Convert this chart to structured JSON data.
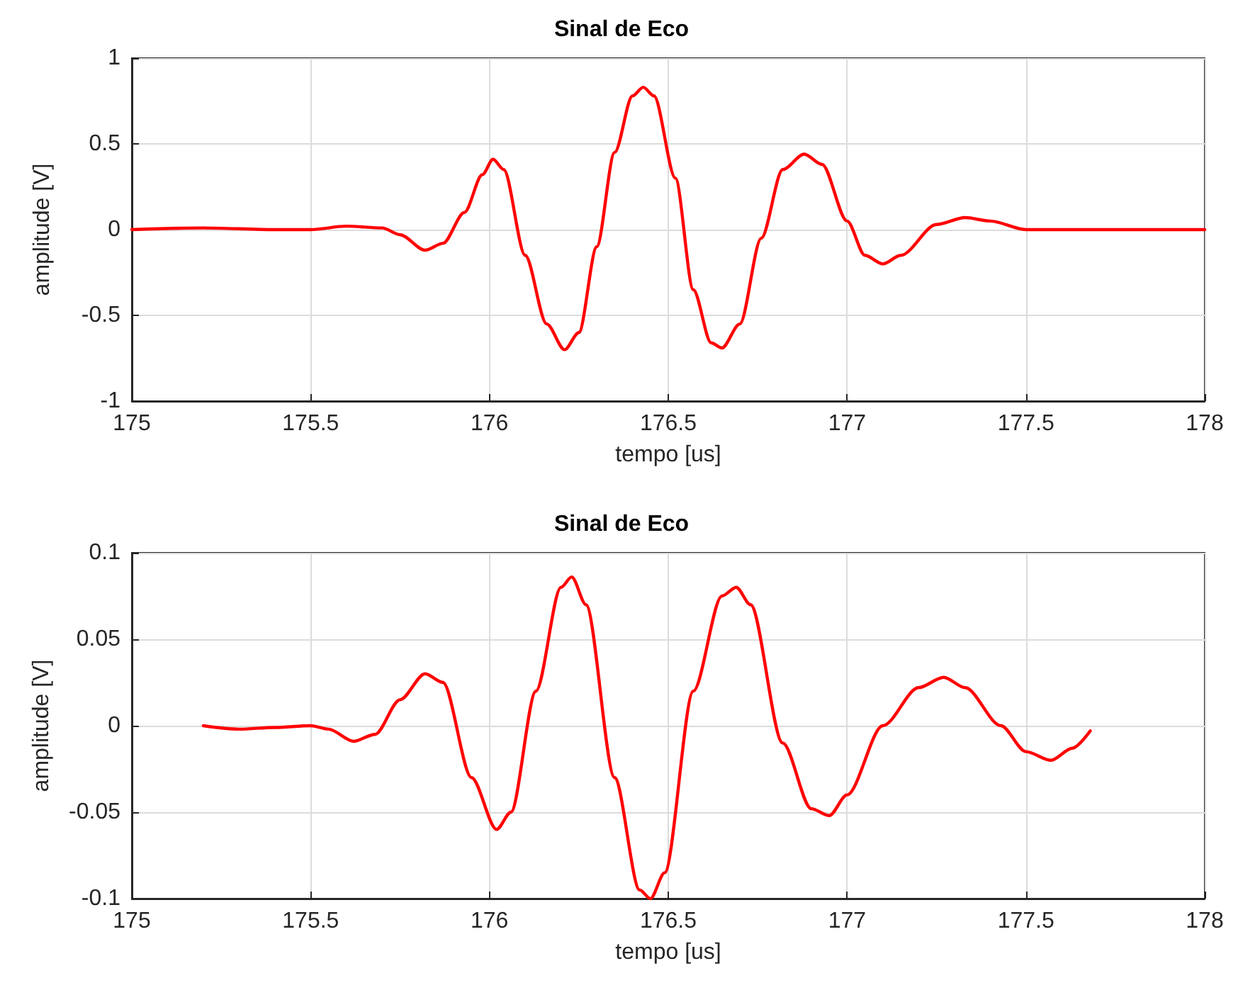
{
  "chart_data": [
    {
      "type": "line",
      "title": "Sinal de Eco",
      "xlabel": "tempo [us]",
      "ylabel": "amplitude [V]",
      "xlim": [
        175,
        178
      ],
      "xticks": [
        175,
        175.5,
        176,
        176.5,
        177,
        177.5,
        178
      ],
      "ylim": [
        -1,
        1
      ],
      "yticks": [
        -1,
        -0.5,
        0,
        0.5,
        1
      ],
      "grid": true,
      "marker": "none",
      "line_style": "solid",
      "series": [
        {
          "color": "#ff0000",
          "x": [
            175,
            175.2,
            175.4,
            175.5,
            175.6,
            175.7,
            175.75,
            175.82,
            175.87,
            175.93,
            175.98,
            176.01,
            176.04,
            176.1,
            176.16,
            176.21,
            176.25,
            176.3,
            176.35,
            176.4,
            176.43,
            176.46,
            176.52,
            176.57,
            176.62,
            176.65,
            176.7,
            176.76,
            176.82,
            176.88,
            176.93,
            177,
            177.05,
            177.1,
            177.15,
            177.25,
            177.33,
            177.4,
            177.5,
            177.7,
            178
          ],
          "values": [
            0,
            0.01,
            0,
            0,
            0.02,
            0.01,
            -0.03,
            -0.12,
            -0.08,
            0.1,
            0.32,
            0.41,
            0.35,
            -0.15,
            -0.55,
            -0.7,
            -0.6,
            -0.1,
            0.45,
            0.78,
            0.83,
            0.78,
            0.3,
            -0.35,
            -0.66,
            -0.69,
            -0.55,
            -0.05,
            0.35,
            0.44,
            0.38,
            0.05,
            -0.15,
            -0.2,
            -0.15,
            0.03,
            0.07,
            0.05,
            0,
            0,
            0
          ]
        }
      ]
    },
    {
      "type": "line",
      "title": "Sinal de Eco",
      "xlabel": "tempo [us]",
      "ylabel": "amplitude [V]",
      "xlim": [
        175,
        178
      ],
      "xticks": [
        175,
        175.5,
        176,
        176.5,
        177,
        177.5,
        178
      ],
      "ylim": [
        -0.1,
        0.1
      ],
      "yticks": [
        -0.1,
        -0.05,
        0,
        0.05,
        0.1
      ],
      "grid": true,
      "marker": "none",
      "line_style": "solid",
      "series": [
        {
          "color": "#ff0000",
          "x": [
            175.2,
            175.3,
            175.4,
            175.5,
            175.55,
            175.62,
            175.68,
            175.75,
            175.82,
            175.87,
            175.95,
            176.02,
            176.06,
            176.13,
            176.2,
            176.23,
            176.27,
            176.35,
            176.42,
            176.45,
            176.49,
            176.57,
            176.65,
            176.69,
            176.73,
            176.82,
            176.9,
            176.95,
            177,
            177.1,
            177.2,
            177.27,
            177.33,
            177.43,
            177.5,
            177.57,
            177.63,
            177.68
          ],
          "values": [
            0,
            -0.002,
            -0.001,
            0,
            -0.002,
            -0.009,
            -0.005,
            0.015,
            0.03,
            0.025,
            -0.03,
            -0.06,
            -0.05,
            0.02,
            0.08,
            0.086,
            0.07,
            -0.03,
            -0.095,
            -0.1,
            -0.085,
            0.02,
            0.075,
            0.08,
            0.07,
            -0.01,
            -0.048,
            -0.052,
            -0.04,
            0,
            0.022,
            0.028,
            0.022,
            0,
            -0.015,
            -0.02,
            -0.013,
            -0.003
          ]
        }
      ]
    }
  ]
}
